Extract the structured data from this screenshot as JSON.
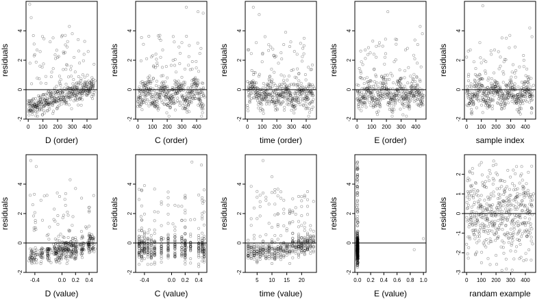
{
  "chart_data": [
    {
      "type": "scatter",
      "xlabel": "D (order)",
      "ylabel": "residuals",
      "xlim": [
        -15,
        470
      ],
      "ylim": [
        -2,
        6
      ],
      "xticks": [
        0,
        100,
        200,
        300,
        400
      ],
      "yticks": [
        -2,
        0,
        2,
        4
      ],
      "ytick_labels": [
        "-2",
        "0",
        "2",
        "4"
      ],
      "hline": 0,
      "gen": "order",
      "seed": 11,
      "points": [
        [
          5,
          -1.3
        ],
        [
          10,
          5.8
        ],
        [
          20,
          4.9
        ],
        [
          30,
          -1.1
        ],
        [
          40,
          3.1
        ],
        [
          50,
          -0.6
        ],
        [
          60,
          2.7
        ],
        [
          70,
          -0.9
        ],
        [
          80,
          1.6
        ],
        [
          100,
          -0.4
        ],
        [
          120,
          0.9
        ],
        [
          140,
          -0.3
        ],
        [
          160,
          -0.2
        ],
        [
          180,
          0.1
        ],
        [
          200,
          2.2
        ],
        [
          220,
          0.3
        ],
        [
          240,
          -0.5
        ],
        [
          260,
          1.7
        ],
        [
          280,
          4.3
        ],
        [
          300,
          3.8
        ],
        [
          320,
          0.2
        ],
        [
          340,
          3.4
        ],
        [
          360,
          0.4
        ],
        [
          380,
          2.4
        ],
        [
          400,
          0.5
        ],
        [
          420,
          0.3
        ],
        [
          440,
          0.2
        ],
        [
          455,
          0.6
        ]
      ]
    },
    {
      "type": "scatter",
      "xlabel": "C (order)",
      "ylabel": "residuals",
      "xlim": [
        -15,
        470
      ],
      "ylim": [
        -2,
        6
      ],
      "xticks": [
        0,
        100,
        200,
        300,
        400
      ],
      "yticks": [
        -2,
        0,
        2,
        4
      ],
      "ytick_labels": [
        "-2",
        "0",
        "2",
        "4"
      ],
      "hline": 0,
      "gen": "order",
      "seed": 23,
      "points": [
        [
          10,
          0.2
        ],
        [
          20,
          -0.4
        ],
        [
          40,
          0.4
        ],
        [
          60,
          2.1
        ],
        [
          80,
          -0.3
        ],
        [
          100,
          -0.9
        ],
        [
          120,
          1.5
        ],
        [
          140,
          -0.6
        ],
        [
          160,
          0.1
        ],
        [
          180,
          -1.0
        ],
        [
          200,
          0.8
        ],
        [
          220,
          -0.5
        ],
        [
          240,
          2.0
        ],
        [
          260,
          1.2
        ],
        [
          280,
          2.9
        ],
        [
          300,
          3.2
        ],
        [
          320,
          0.5
        ],
        [
          330,
          5.6
        ],
        [
          350,
          3.0
        ],
        [
          370,
          1.4
        ],
        [
          390,
          -0.6
        ],
        [
          410,
          5.3
        ],
        [
          430,
          2.8
        ],
        [
          445,
          5.2
        ],
        [
          455,
          -0.5
        ]
      ]
    },
    {
      "type": "scatter",
      "xlabel": "time (order)",
      "ylabel": "residuals",
      "xlim": [
        -15,
        470
      ],
      "ylim": [
        -2,
        6
      ],
      "xticks": [
        0,
        100,
        200,
        300,
        400
      ],
      "yticks": [
        -2,
        0,
        2,
        4
      ],
      "ytick_labels": [
        "-2",
        "0",
        "2",
        "4"
      ],
      "hline": 0,
      "gen": "order",
      "seed": 37,
      "points": [
        [
          10,
          -0.4
        ],
        [
          30,
          1.3
        ],
        [
          40,
          5.6
        ],
        [
          60,
          3.2
        ],
        [
          80,
          5.1
        ],
        [
          100,
          1.9
        ],
        [
          120,
          3.6
        ],
        [
          140,
          -0.8
        ],
        [
          160,
          0.4
        ],
        [
          180,
          2.3
        ],
        [
          200,
          -0.6
        ],
        [
          230,
          1.0
        ],
        [
          260,
          3.9
        ],
        [
          280,
          -0.5
        ],
        [
          300,
          1.3
        ],
        [
          320,
          2.6
        ],
        [
          350,
          0.6
        ],
        [
          370,
          -0.3
        ],
        [
          400,
          0.2
        ],
        [
          420,
          0.4
        ],
        [
          440,
          -0.2
        ],
        [
          455,
          0.1
        ]
      ]
    },
    {
      "type": "scatter",
      "xlabel": "E (order)",
      "ylabel": "residuals",
      "xlim": [
        -15,
        470
      ],
      "ylim": [
        -2,
        6
      ],
      "xticks": [
        0,
        100,
        200,
        300,
        400
      ],
      "yticks": [
        -2,
        0,
        2,
        4
      ],
      "ytick_labels": [
        "-2",
        "0",
        "2",
        "4"
      ],
      "hline": 0,
      "gen": "order",
      "seed": 41,
      "points": [
        [
          10,
          0.3
        ],
        [
          30,
          1.9
        ],
        [
          50,
          0.1
        ],
        [
          70,
          -0.7
        ],
        [
          90,
          2.5
        ],
        [
          110,
          -1.2
        ],
        [
          130,
          0.9
        ],
        [
          150,
          3.0
        ],
        [
          170,
          -0.4
        ],
        [
          190,
          2.2
        ],
        [
          210,
          5.3
        ],
        [
          230,
          1.1
        ],
        [
          250,
          -0.3
        ],
        [
          270,
          3.4
        ],
        [
          290,
          0.6
        ],
        [
          310,
          -0.5
        ],
        [
          330,
          2.7
        ],
        [
          350,
          1.5
        ],
        [
          370,
          0.2
        ],
        [
          390,
          -0.8
        ],
        [
          410,
          1.8
        ],
        [
          430,
          4.3
        ],
        [
          445,
          3.8
        ],
        [
          455,
          -0.4
        ]
      ]
    },
    {
      "type": "scatter",
      "xlabel": "sample index",
      "ylabel": "residuals",
      "xlim": [
        -15,
        470
      ],
      "ylim": [
        -2,
        6
      ],
      "xticks": [
        0,
        100,
        200,
        300,
        400
      ],
      "yticks": [
        -2,
        0,
        2,
        4
      ],
      "ytick_labels": [
        "-2",
        "0",
        "2",
        "4"
      ],
      "hline": 0,
      "gen": "order",
      "seed": 53,
      "points": [
        [
          10,
          -0.5
        ],
        [
          30,
          0.4
        ],
        [
          50,
          1.9
        ],
        [
          70,
          -0.4
        ],
        [
          90,
          3.2
        ],
        [
          110,
          5.7
        ],
        [
          130,
          1.1
        ],
        [
          150,
          -0.6
        ],
        [
          170,
          0.3
        ],
        [
          190,
          2.7
        ],
        [
          210,
          -0.9
        ],
        [
          230,
          1.6
        ],
        [
          250,
          0.5
        ],
        [
          270,
          3.5
        ],
        [
          290,
          -0.3
        ],
        [
          310,
          1.2
        ],
        [
          330,
          2.9
        ],
        [
          350,
          0.2
        ],
        [
          370,
          -0.5
        ],
        [
          390,
          2.0
        ],
        [
          410,
          1.4
        ],
        [
          430,
          4.2
        ],
        [
          445,
          3.6
        ],
        [
          455,
          0.3
        ]
      ]
    },
    {
      "type": "scatter",
      "xlabel": "D (value)",
      "ylabel": "residuals",
      "xlim": [
        -0.53,
        0.52
      ],
      "ylim": [
        -2,
        6
      ],
      "xticks": [
        -0.4,
        0.0,
        0.2,
        0.4
      ],
      "xtick_labels": [
        "-0.4",
        "0.0",
        "0.2",
        "0.4"
      ],
      "yticks": [
        -2,
        0,
        2,
        4
      ],
      "ytick_labels": [
        "-2",
        "0",
        "2",
        "4"
      ],
      "hline": 0,
      "gen": "d_value",
      "seed": 61,
      "points": [
        [
          -0.46,
          5.6
        ],
        [
          -0.45,
          -1.3
        ],
        [
          -0.43,
          2.6
        ],
        [
          -0.38,
          5.2
        ],
        [
          -0.36,
          -0.8
        ],
        [
          -0.31,
          2.9
        ],
        [
          -0.26,
          3.2
        ],
        [
          -0.22,
          0.5
        ],
        [
          -0.17,
          -0.4
        ],
        [
          -0.12,
          1.6
        ],
        [
          -0.07,
          3.4
        ],
        [
          -0.02,
          0.6
        ],
        [
          0.03,
          -0.5
        ],
        [
          0.08,
          2.1
        ],
        [
          0.12,
          4.3
        ],
        [
          0.15,
          1.2
        ],
        [
          0.2,
          3.7
        ],
        [
          0.25,
          -0.2
        ],
        [
          0.3,
          0.4
        ],
        [
          0.35,
          1.1
        ],
        [
          0.41,
          0.2
        ],
        [
          0.45,
          0.3
        ]
      ]
    },
    {
      "type": "scatter",
      "xlabel": "C (value)",
      "ylabel": "residuals",
      "xlim": [
        -0.53,
        0.52
      ],
      "ylim": [
        -2,
        6
      ],
      "xticks": [
        -0.4,
        0.0,
        0.2,
        0.4
      ],
      "xtick_labels": [
        "-0.4",
        "0.0",
        "0.2",
        "0.4"
      ],
      "yticks": [
        -2,
        0,
        2,
        4
      ],
      "ytick_labels": [
        "-2",
        "0",
        "2",
        "4"
      ],
      "hline": 0,
      "gen": "c_value",
      "seed": 73,
      "points": [
        [
          -0.48,
          0.3
        ],
        [
          -0.45,
          1.8
        ],
        [
          -0.4,
          3.9
        ],
        [
          -0.33,
          0.9
        ],
        [
          -0.25,
          -0.5
        ],
        [
          -0.2,
          2.1
        ],
        [
          -0.12,
          0.3
        ],
        [
          -0.05,
          -0.6
        ],
        [
          0.02,
          1.3
        ],
        [
          0.1,
          2.5
        ],
        [
          0.15,
          0.4
        ],
        [
          0.2,
          3.1
        ],
        [
          0.22,
          -0.3
        ],
        [
          0.3,
          5.5
        ],
        [
          0.34,
          1.6
        ],
        [
          0.4,
          -0.7
        ],
        [
          0.44,
          5.3
        ],
        [
          0.46,
          2.7
        ],
        [
          0.48,
          -0.5
        ]
      ]
    },
    {
      "type": "scatter",
      "xlabel": "time (value)",
      "ylabel": "residuals",
      "xlim": [
        1,
        25
      ],
      "ylim": [
        -2,
        6
      ],
      "xticks": [
        5,
        10,
        15,
        20
      ],
      "yticks": [
        -2,
        0,
        2,
        4
      ],
      "ytick_labels": [
        "-2",
        "0",
        "2",
        "4"
      ],
      "hline": 0,
      "gen": "time_value",
      "seed": 89,
      "points": [
        [
          2,
          -0.5
        ],
        [
          3,
          1.2
        ],
        [
          4,
          0.3
        ],
        [
          5,
          3.5
        ],
        [
          6,
          2.8
        ],
        [
          7,
          5.6
        ],
        [
          8,
          3.1
        ],
        [
          9,
          -0.4
        ],
        [
          10,
          4.5
        ],
        [
          11,
          1.9
        ],
        [
          12,
          3.2
        ],
        [
          13,
          0.5
        ],
        [
          14,
          2.3
        ],
        [
          15,
          -0.2
        ],
        [
          16,
          1.4
        ],
        [
          17,
          3.0
        ],
        [
          18,
          2.4
        ],
        [
          19,
          0.6
        ],
        [
          20,
          1.2
        ],
        [
          21,
          0.3
        ],
        [
          22,
          -0.3
        ],
        [
          23,
          0.9
        ],
        [
          24,
          0.2
        ]
      ]
    },
    {
      "type": "scatter",
      "xlabel": "E (value)",
      "ylabel": "residuals",
      "xlim": [
        -0.04,
        1.04
      ],
      "ylim": [
        -2,
        6
      ],
      "xticks": [
        0.0,
        0.2,
        0.4,
        0.6,
        0.8,
        1.0
      ],
      "xtick_labels": [
        "0.0",
        "0.2",
        "0.4",
        "0.6",
        "0.8",
        "1.0"
      ],
      "yticks": [
        -2,
        0,
        2,
        4
      ],
      "ytick_labels": [
        "-2",
        "0",
        "2",
        "4"
      ],
      "hline": 0,
      "gen": "e_value",
      "seed": 97,
      "points": [
        [
          0.0,
          5.5
        ],
        [
          0.0,
          5.0
        ],
        [
          0.0,
          4.3
        ],
        [
          0.0,
          3.8
        ],
        [
          0.0,
          2.9
        ],
        [
          0.0,
          2.1
        ],
        [
          0.0,
          1.4
        ],
        [
          0.0,
          0.6
        ],
        [
          0.0,
          -0.3
        ],
        [
          0.0,
          -1.0
        ],
        [
          0.0,
          -1.5
        ],
        [
          0.86,
          -0.45
        ],
        [
          1.0,
          0.3
        ]
      ]
    },
    {
      "type": "scatter",
      "xlabel": "randam example",
      "ylabel": "residuals",
      "xlim": [
        -15,
        470
      ],
      "ylim": [
        -3,
        3
      ],
      "xticks": [
        0,
        100,
        200,
        300,
        400
      ],
      "yticks": [
        -3,
        -2,
        -1,
        0,
        1,
        2
      ],
      "ytick_labels": [
        "-3",
        "-2",
        "-1",
        "0",
        "1",
        "2"
      ],
      "hline": 0,
      "gen": "random",
      "seed": 101,
      "points": [
        [
          10,
          1.8
        ],
        [
          20,
          -1.2
        ],
        [
          40,
          2.3
        ],
        [
          60,
          -2.1
        ],
        [
          80,
          0.9
        ],
        [
          100,
          2.6
        ],
        [
          120,
          -1.6
        ],
        [
          140,
          0.2
        ],
        [
          160,
          -2.6
        ],
        [
          180,
          1.5
        ],
        [
          200,
          2.5
        ],
        [
          220,
          -0.8
        ],
        [
          240,
          -2.9
        ],
        [
          260,
          1.1
        ],
        [
          280,
          2.2
        ],
        [
          300,
          -1.9
        ],
        [
          320,
          0.4
        ],
        [
          340,
          2.4
        ],
        [
          360,
          -2.3
        ],
        [
          380,
          1.7
        ],
        [
          400,
          -0.6
        ],
        [
          420,
          2.1
        ],
        [
          440,
          -1.4
        ],
        [
          455,
          1.0
        ]
      ]
    }
  ]
}
